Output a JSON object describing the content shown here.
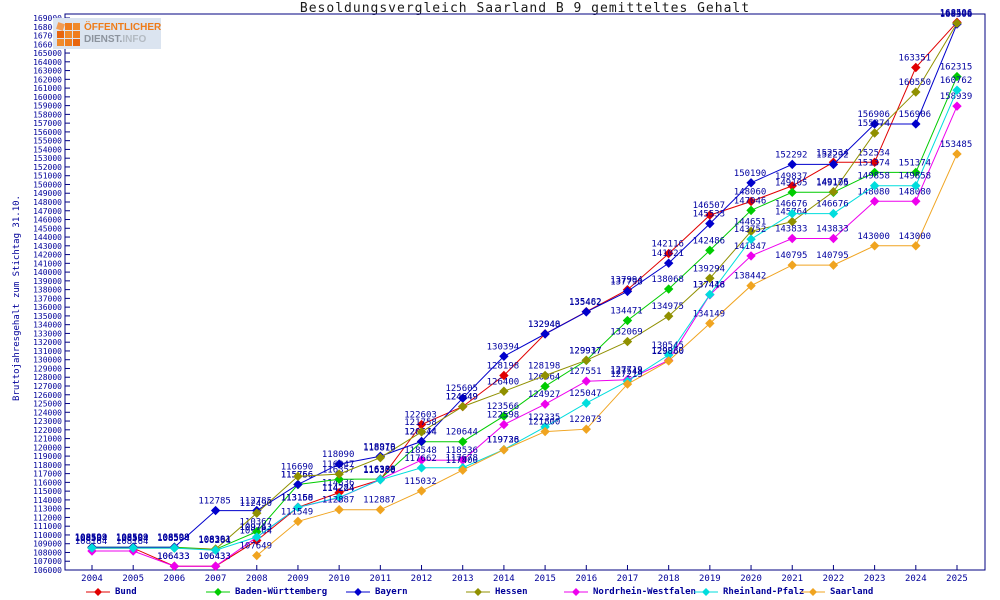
{
  "header": {
    "title": "Besoldungsvergleich Saarland B 9 gemitteltes Gehalt",
    "logo": {
      "line1": "ÖFFENTLICHER",
      "line2_a": "DIENST.",
      "line2_b": "INFO"
    }
  },
  "y_axis": {
    "label": "Bruttojahresgehalt zum Stichtag 31.10.",
    "min": 106000,
    "max": 169000,
    "step": 1000
  },
  "x_axis": {
    "years": [
      2004,
      2005,
      2006,
      2007,
      2008,
      2009,
      2010,
      2011,
      2012,
      2013,
      2014,
      2015,
      2016,
      2017,
      2018,
      2019,
      2020,
      2021,
      2022,
      2023,
      2024,
      2025
    ]
  },
  "colors": {
    "axis_text": "#000099",
    "label_text": "#0000a0",
    "frame": "#000080",
    "title_text": "#1a1a1a"
  },
  "chart_data": {
    "type": "line",
    "title": "Besoldungsvergleich Saarland B 9 gemitteltes Gehalt",
    "xlabel": "",
    "ylabel": "Bruttojahresgehalt zum Stichtag 31.10.",
    "ylim": [
      106000,
      169000
    ],
    "ytick_step": 1000,
    "grid": false,
    "legend_position": "bottom",
    "x": [
      2004,
      2005,
      2006,
      2007,
      2008,
      2009,
      2010,
      2011,
      2012,
      2013,
      2014,
      2015,
      2016,
      2017,
      2018,
      2019,
      2020,
      2021,
      2022,
      2023,
      2024,
      2025
    ],
    "series": [
      {
        "name": "Bund",
        "color": "#e10000",
        "values": [
          108504,
          108504,
          106433,
          106433,
          109364,
          113160,
          114836,
          116309,
          122603,
          124649,
          128198,
          132948,
          135482,
          137994,
          142116,
          146507,
          148060,
          149837,
          152534,
          152534,
          163351,
          168506
        ]
      },
      {
        "name": "Baden-Württemberg",
        "color": "#00cc00",
        "values": [
          108599,
          108599,
          108599,
          108361,
          110367,
          115756,
          116357,
          116388,
          120644,
          120644,
          123566,
          126964,
          129917,
          134471,
          138068,
          142486,
          147046,
          149105,
          149105,
          151374,
          151374,
          162315
        ]
      },
      {
        "name": "Bayern",
        "color": "#0000cc",
        "values": [
          108599,
          108599,
          108599,
          112785,
          112785,
          115766,
          118090,
          118979,
          120674,
          125605,
          130394,
          132940,
          135462,
          137798,
          141021,
          145533,
          150190,
          152292,
          152292,
          156906,
          156906,
          168306
        ]
      },
      {
        "name": "Hessen",
        "color": "#909000",
        "values": [
          108504,
          108504,
          108504,
          108391,
          112490,
          116690,
          116947,
          118816,
          121758,
          124649,
          126400,
          128198,
          129937,
          132069,
          134975,
          139294,
          144651,
          145764,
          149176,
          155874,
          160550,
          168406
        ]
      },
      {
        "name": "Nordrhein-Westfalen",
        "color": "#ee00ee",
        "values": [
          108164,
          108164,
          106433,
          106433,
          109743,
          113158,
          114224,
          116350,
          118548,
          118536,
          122598,
          124927,
          127551,
          127719,
          129930,
          137416,
          141847,
          143833,
          143833,
          148080,
          148080,
          158939
        ]
      },
      {
        "name": "Rheinland-Pfalz",
        "color": "#00dddd",
        "values": [
          108504,
          108504,
          108504,
          108264,
          109763,
          113158,
          114284,
          116300,
          117662,
          117678,
          119738,
          122335,
          125047,
          127548,
          130545,
          137448,
          143752,
          146676,
          146676,
          149858,
          149858,
          160762
        ]
      },
      {
        "name": "Saarland",
        "color": "#f0a420",
        "values": [
          null,
          null,
          null,
          null,
          107649,
          111549,
          112887,
          112887,
          115032,
          117400,
          119726,
          121800,
          122073,
          127219,
          129860,
          134149,
          138442,
          140795,
          140795,
          143000,
          143000,
          153485
        ]
      }
    ]
  },
  "legend": {
    "items": [
      {
        "label": "Bund",
        "color": "#e10000",
        "x": 85
      },
      {
        "label": "Baden-Württemberg",
        "color": "#00cc00",
        "x": 205
      },
      {
        "label": "Bayern",
        "color": "#0000cc",
        "x": 345
      },
      {
        "label": "Hessen",
        "color": "#909000",
        "x": 465
      },
      {
        "label": "Nordrhein-Westfalen",
        "color": "#ee00ee",
        "x": 563
      },
      {
        "label": "Rheinland-Pfalz",
        "color": "#00dddd",
        "x": 693
      },
      {
        "label": "Saarland",
        "color": "#f0a420",
        "x": 800
      }
    ]
  }
}
